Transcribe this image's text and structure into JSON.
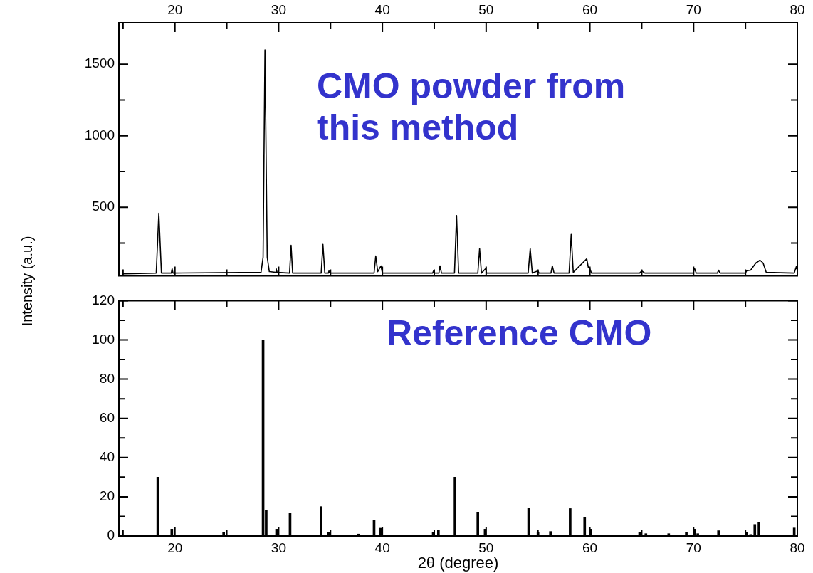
{
  "chart_data": [
    {
      "type": "line",
      "annotations": [
        "CMO powder from this method"
      ],
      "xlim": [
        14.6,
        80
      ],
      "xticks": [
        20,
        30,
        40,
        50,
        60,
        70,
        80,
        {
          "value": 15,
          "label": null
        },
        {
          "value": 25,
          "label": null
        },
        {
          "value": 35,
          "label": null
        },
        {
          "value": 45,
          "label": null
        },
        {
          "value": 55,
          "label": null
        },
        {
          "value": 65,
          "label": null
        },
        {
          "value": 75,
          "label": null
        }
      ],
      "ylim": [
        20,
        1790
      ],
      "yticks": [
        500,
        1000,
        1500,
        {
          "value": 250,
          "label": null
        },
        {
          "value": 750,
          "label": null
        },
        {
          "value": 1250,
          "label": null
        }
      ],
      "series": [
        {
          "color": "#000000",
          "x": [
            15,
            18.2,
            18.45,
            18.7,
            19.65,
            19.73,
            19.82,
            28.3,
            28.5,
            28.68,
            28.9,
            29.1,
            29.7,
            29.76,
            29.85,
            31.05,
            31.2,
            31.35,
            34.1,
            34.27,
            34.45,
            34.8,
            34.85,
            34.95,
            39.2,
            39.36,
            39.55,
            39.86,
            40.0,
            44.85,
            44.93,
            45.0,
            45.45,
            45.55,
            45.7,
            46.95,
            47.15,
            47.35,
            49.2,
            49.37,
            49.55,
            49.94,
            50.05,
            54.05,
            54.25,
            54.45,
            55.0,
            55.1,
            56.25,
            56.38,
            56.55,
            58.0,
            58.2,
            58.4,
            59.7,
            59.85,
            60.0,
            60.15,
            64.8,
            65.0,
            65.3,
            69.95,
            70.1,
            70.25,
            72.3,
            72.4,
            72.55,
            75.0,
            75.1,
            75.5,
            76.0,
            76.4,
            76.7,
            77.0,
            79.7,
            79.9,
            80
          ],
          "values": [
            35,
            40,
            458,
            40,
            40,
            70,
            40,
            45,
            150,
            1600,
            150,
            50,
            45,
            70,
            45,
            40,
            234,
            40,
            40,
            240,
            40,
            40,
            55,
            40,
            40,
            160,
            50,
            90,
            40,
            40,
            55,
            40,
            40,
            90,
            40,
            40,
            442,
            40,
            40,
            210,
            40,
            70,
            40,
            40,
            210,
            40,
            55,
            40,
            40,
            90,
            40,
            40,
            310,
            45,
            140,
            80,
            70,
            40,
            40,
            55,
            40,
            40,
            70,
            40,
            40,
            60,
            40,
            40,
            55,
            60,
            110,
            130,
            110,
            45,
            40,
            85,
            60
          ]
        }
      ]
    },
    {
      "type": "bar",
      "annotations": [
        "Reference CMO"
      ],
      "xlabel": "2θ (degree)",
      "ylabel": "Intensity (a.u.)",
      "xlim": [
        14.6,
        80
      ],
      "xticks": [
        20,
        30,
        40,
        50,
        60,
        70,
        80,
        {
          "value": 15,
          "label": null
        },
        {
          "value": 25,
          "label": null
        },
        {
          "value": 35,
          "label": null
        },
        {
          "value": 45,
          "label": null
        },
        {
          "value": 55,
          "label": null
        },
        {
          "value": 65,
          "label": null
        },
        {
          "value": 75,
          "label": null
        }
      ],
      "ylim": [
        0,
        120
      ],
      "yticks": [
        0,
        20,
        40,
        60,
        80,
        100,
        120,
        {
          "value": 10,
          "label": null
        },
        {
          "value": 30,
          "label": null
        },
        {
          "value": 50,
          "label": null
        },
        {
          "value": 70,
          "label": null
        },
        {
          "value": 90,
          "label": null
        },
        {
          "value": 110,
          "label": null
        }
      ],
      "series": [
        {
          "color": "#000000",
          "x": [
            18.35,
            19.7,
            24.7,
            28.5,
            28.8,
            29.8,
            31.1,
            34.1,
            34.8,
            37.7,
            39.2,
            39.8,
            43.1,
            44.9,
            45.4,
            47.0,
            49.2,
            49.9,
            53.1,
            54.1,
            55.0,
            56.2,
            58.1,
            59.5,
            60.1,
            64.8,
            65.4,
            67.6,
            69.3,
            70.1,
            70.4,
            72.4,
            75.1,
            75.5,
            75.9,
            76.3,
            77.5,
            79.7
          ],
          "values": [
            30,
            3.5,
            2,
            100,
            13,
            3.5,
            11.5,
            15,
            2,
            1,
            8,
            4,
            0.5,
            2,
            3,
            30,
            12,
            3.5,
            0.5,
            14.4,
            2,
            2.3,
            14,
            9.6,
            3.5,
            2,
            1.2,
            1.2,
            1.8,
            3.5,
            1.2,
            2.7,
            1.8,
            0.8,
            5.9,
            7,
            0.5,
            4.1
          ]
        }
      ]
    }
  ]
}
